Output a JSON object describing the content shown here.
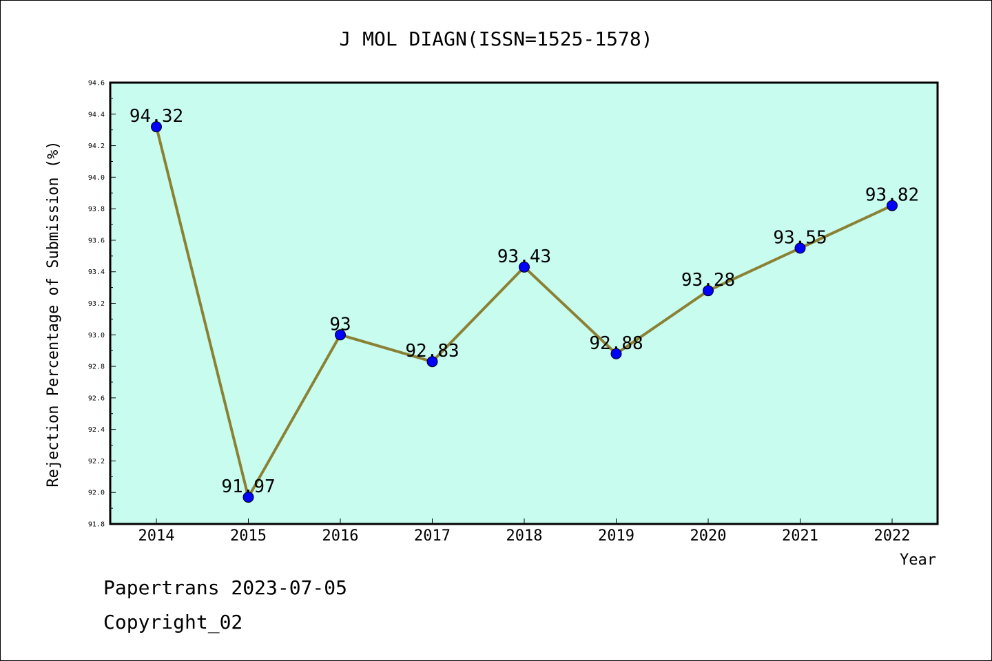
{
  "chart_data": {
    "type": "line",
    "title": "J MOL DIAGN(ISSN=1525-1578)",
    "xlabel": "Year",
    "ylabel": "Rejection Percentage of Submission (%)",
    "categories": [
      "2014",
      "2015",
      "2016",
      "2017",
      "2018",
      "2019",
      "2020",
      "2021",
      "2022"
    ],
    "values": [
      94.32,
      91.97,
      93,
      92.83,
      93.43,
      92.88,
      93.28,
      93.55,
      93.82
    ],
    "data_labels": [
      "94.32",
      "91.97",
      "93",
      "92.83",
      "93.43",
      "92.88",
      "93.28",
      "93.55",
      "93.82"
    ],
    "ylim": [
      91.8,
      94.6
    ],
    "yticks": [
      "91.8",
      "92.0",
      "92.2",
      "92.4",
      "92.6",
      "92.8",
      "93.0",
      "93.2",
      "93.4",
      "93.6",
      "93.8",
      "94.0",
      "94.2",
      "94.4",
      "94.6"
    ],
    "grid": false,
    "colors": {
      "plot_background": "#c8fcef",
      "line": "#8b8135",
      "marker": "#0000ff"
    }
  },
  "footer": {
    "line1": "Papertrans 2023-07-05",
    "line2": "Copyright_02"
  }
}
